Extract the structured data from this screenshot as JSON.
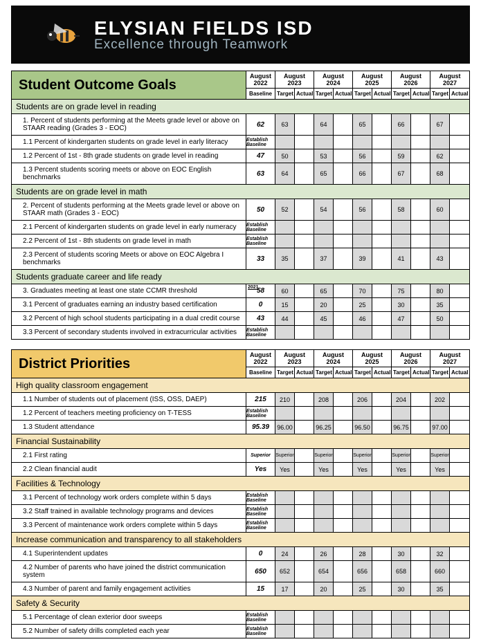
{
  "banner": {
    "title": "ELYSIAN FIELDS ISD",
    "subtitle": "Excellence through Teamwork"
  },
  "years": [
    "August 2022",
    "August 2023",
    "August 2024",
    "August 2025",
    "August 2026",
    "August 2027"
  ],
  "year_sub": {
    "baseline": "Baseline",
    "target": "Target",
    "actual": "Actual"
  },
  "colors": {
    "green": "#a9c789",
    "green_sub": "#dbe8cf",
    "gold": "#f1c96b",
    "gold_sub": "#f6e6bd",
    "grey": "#d9d9d9",
    "banner": "#0a0a0a",
    "sub_text": "#a0b4c0"
  },
  "sections": [
    {
      "title": "Student Outcome Goals",
      "color": "green",
      "groups": [
        {
          "subtitle": "Students are on grade level in reading",
          "rows": [
            {
              "label": "1. Percent of students performing at the Meets grade level or above on STAAR reading (Grades 3 - EOC)",
              "baseline": "62",
              "targets": [
                "63",
                "64",
                "65",
                "66",
                "67"
              ]
            },
            {
              "label": "1.1 Percent of kindergarten students on grade level in early literacy",
              "baseline": "Establish Baseline",
              "estab": true,
              "targets": [
                "",
                "",
                "",
                "",
                ""
              ]
            },
            {
              "label": "1.2 Percent of 1st - 8th grade students on grade level in reading",
              "baseline": "47",
              "targets": [
                "50",
                "53",
                "56",
                "59",
                "62"
              ]
            },
            {
              "label": "1.3 Percent students scoring meets or above on EOC English benchmarks",
              "baseline": "63",
              "targets": [
                "64",
                "65",
                "66",
                "67",
                "68"
              ]
            }
          ]
        },
        {
          "subtitle": "Students are on grade level in math",
          "rows": [
            {
              "label": "2. Percent of students performing at the Meets grade level or above on STAAR math (Grades 3 - EOC)",
              "baseline": "50",
              "targets": [
                "52",
                "54",
                "56",
                "58",
                "60"
              ]
            },
            {
              "label": "2.1 Percent of kindergarten students on grade level in early numeracy",
              "baseline": "Establish Baseline",
              "estab": true,
              "targets": [
                "",
                "",
                "",
                "",
                ""
              ]
            },
            {
              "label": "2.2 Percent of 1st - 8th students on grade level in math",
              "baseline": "Establish Baseline",
              "estab": true,
              "targets": [
                "",
                "",
                "",
                "",
                ""
              ]
            },
            {
              "label": "2.3 Percent of students scoring Meets or above on EOC Algebra I benchmarks",
              "baseline": "33",
              "targets": [
                "35",
                "37",
                "39",
                "41",
                "43"
              ]
            }
          ]
        },
        {
          "subtitle": "Students graduate career and life ready",
          "rows": [
            {
              "label": "3. Graduates meeting at least one state CCMR threshold",
              "baseline": "58",
              "pre_year": "2021",
              "targets": [
                "60",
                "65",
                "70",
                "75",
                "80"
              ]
            },
            {
              "label": "3.1 Percent of graduates earning an industry based certification",
              "baseline": "0",
              "targets": [
                "15",
                "20",
                "25",
                "30",
                "35"
              ]
            },
            {
              "label": "3.2 Percent of high school students participating in a dual credit course",
              "baseline": "43",
              "targets": [
                "44",
                "45",
                "46",
                "47",
                "50"
              ]
            },
            {
              "label": "3.3 Percent of secondary students involved in extracurricular activities",
              "baseline": "Establish Baseline",
              "estab": true,
              "targets": [
                "",
                "",
                "",
                "",
                ""
              ]
            }
          ]
        }
      ]
    },
    {
      "title": "District Priorities",
      "color": "gold",
      "groups": [
        {
          "subtitle": "High quality classroom engagement",
          "rows": [
            {
              "label": "1.1 Number of students out of placement (ISS, OSS, DAEP)",
              "baseline": "215",
              "targets": [
                "210",
                "208",
                "206",
                "204",
                "202"
              ]
            },
            {
              "label": "1.2 Percent of teachers meeting proficiency on T-TESS",
              "baseline": "Establish Baseline",
              "estab": true,
              "targets": [
                "",
                "",
                "",
                "",
                ""
              ]
            },
            {
              "label": "1.3 Student attendance",
              "baseline": "95.39",
              "targets": [
                "96.00",
                "96.25",
                "96.50",
                "96.75",
                "97.00"
              ]
            }
          ]
        },
        {
          "subtitle": "Financial Sustainability",
          "rows": [
            {
              "label": "2.1 First rating",
              "baseline": "Superior",
              "sup": true,
              "targets": [
                "Superior",
                "Superior",
                "Superior",
                "Superior",
                "Superior"
              ],
              "sup_t": true
            },
            {
              "label": "2.2 Clean financial audit",
              "baseline": "Yes",
              "targets": [
                "Yes",
                "Yes",
                "Yes",
                "Yes",
                "Yes"
              ]
            }
          ]
        },
        {
          "subtitle": "Facilities & Technology",
          "rows": [
            {
              "label": "3.1 Percent of technology work orders complete within 5 days",
              "baseline": "Establish Baseline",
              "estab": true,
              "targets": [
                "",
                "",
                "",
                "",
                ""
              ]
            },
            {
              "label": "3.2 Staff trained in available technology programs and devices",
              "baseline": "Establish Baseline",
              "estab": true,
              "targets": [
                "",
                "",
                "",
                "",
                ""
              ]
            },
            {
              "label": "3.3 Percent of maintenance work orders complete within 5 days",
              "baseline": "Establish Baseline",
              "estab": true,
              "targets": [
                "",
                "",
                "",
                "",
                ""
              ]
            }
          ]
        },
        {
          "subtitle": "Increase communication and transparency to all stakeholders",
          "rows": [
            {
              "label": "4.1 Superintendent updates",
              "baseline": "0",
              "targets": [
                "24",
                "26",
                "28",
                "30",
                "32"
              ]
            },
            {
              "label": "4.2 Number of parents who have joined the district communication system",
              "baseline": "650",
              "targets": [
                "652",
                "654",
                "656",
                "658",
                "660"
              ]
            },
            {
              "label": "4.3 Number of parent and family engagement activities",
              "baseline": "15",
              "targets": [
                "17",
                "20",
                "25",
                "30",
                "35"
              ]
            }
          ]
        },
        {
          "subtitle": "Safety & Security",
          "rows": [
            {
              "label": "5.1 Percentage of clean exterior door sweeps",
              "baseline": "Establish Baseline",
              "estab": true,
              "targets": [
                "",
                "",
                "",
                "",
                ""
              ]
            },
            {
              "label": "5.2 Number of safety drills completed each year",
              "baseline": "Establish Baseline",
              "estab": true,
              "targets": [
                "",
                "",
                "",
                "",
                ""
              ]
            }
          ]
        }
      ]
    }
  ]
}
